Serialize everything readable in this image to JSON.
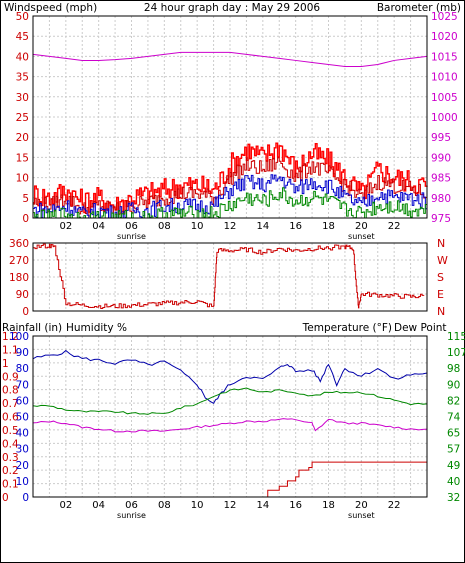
{
  "header": {
    "title": "24 hour graph day : May 29 2006",
    "left_label": "Windspeed (mph)",
    "right_label": "Barometer (mb)"
  },
  "colors": {
    "wind_axis": "#cc0000",
    "baro_axis": "#cc00cc",
    "hum_axis": "#0000cc",
    "temp_axis": "#008800",
    "grid": "#cccccc",
    "wind_gust": "#ff0000",
    "wind_max": "#cc0000",
    "wind_avg": "#0000cc",
    "wind_min": "#008800",
    "barometer": "#cc00cc",
    "direction": "#cc0000",
    "rain": "#cc0000",
    "humidity": "#0000aa",
    "temperature": "#008800",
    "dew_point": "#cc00cc"
  },
  "chart_data": [
    {
      "type": "line",
      "title": "24 hour graph day : May 29 2006",
      "ylabel": "Windspeed (mph)",
      "y2label": "Barometer (mb)",
      "xlim": [
        0,
        24
      ],
      "ylim": [
        0,
        50
      ],
      "y2lim": [
        975,
        1025
      ],
      "x_ticks": [
        "02",
        "04",
        "06",
        "08",
        "10",
        "12",
        "14",
        "16",
        "18",
        "20",
        "22"
      ],
      "x_markers": [
        "sunrise",
        "sunset"
      ],
      "y_ticks": [
        0,
        5,
        10,
        15,
        20,
        25,
        30,
        35,
        40,
        45,
        50
      ],
      "y2_ticks": [
        975,
        980,
        985,
        990,
        995,
        1000,
        1005,
        1010,
        1015,
        1020,
        1025
      ],
      "series": [
        {
          "name": "",
          "role": "barometer",
          "x": [
            0,
            1,
            2,
            3,
            4,
            5,
            6,
            7,
            8,
            9,
            10,
            11,
            12,
            13,
            14,
            15,
            16,
            17,
            18,
            19,
            20,
            21,
            22,
            23,
            24
          ],
          "values": [
            1015.5,
            1015,
            1014.5,
            1014,
            1014,
            1014.2,
            1014.5,
            1015,
            1015.5,
            1016,
            1016,
            1016,
            1016,
            1015.5,
            1015,
            1014.5,
            1014,
            1013.5,
            1013,
            1012.5,
            1012.5,
            1013,
            1014,
            1014.5,
            1015
          ]
        },
        {
          "name": "",
          "role": "gust",
          "x": [
            0,
            1,
            2,
            3,
            4,
            5,
            6,
            7,
            8,
            9,
            10,
            11,
            12,
            13,
            14,
            15,
            16,
            17,
            18,
            19,
            20,
            21,
            22,
            23,
            24
          ],
          "values": [
            6,
            5,
            7,
            4,
            5,
            3,
            5,
            6,
            7,
            8,
            8,
            7,
            13,
            17,
            15,
            18,
            12,
            16,
            14,
            10,
            6,
            12,
            10,
            9,
            8
          ]
        },
        {
          "name": "",
          "role": "max",
          "x": [
            0,
            1,
            2,
            3,
            4,
            5,
            6,
            7,
            8,
            9,
            10,
            11,
            12,
            13,
            14,
            15,
            16,
            17,
            18,
            19,
            20,
            21,
            22,
            23,
            24
          ],
          "values": [
            4,
            3,
            5,
            2,
            3,
            2,
            3,
            4,
            5,
            6,
            6,
            5,
            10,
            13,
            12,
            14,
            10,
            13,
            11,
            8,
            5,
            9,
            8,
            7,
            6
          ]
        },
        {
          "name": "",
          "role": "average",
          "x": [
            0,
            1,
            2,
            3,
            4,
            5,
            6,
            7,
            8,
            9,
            10,
            11,
            12,
            13,
            14,
            15,
            16,
            17,
            18,
            19,
            20,
            21,
            22,
            23,
            24
          ],
          "values": [
            2,
            2,
            3,
            1,
            2,
            1,
            2,
            2,
            3,
            3,
            3,
            3,
            7,
            9,
            8,
            10,
            7,
            9,
            8,
            5,
            3,
            6,
            5,
            5,
            4
          ]
        },
        {
          "name": "",
          "role": "min",
          "x": [
            0,
            1,
            2,
            3,
            4,
            5,
            6,
            7,
            8,
            9,
            10,
            11,
            12,
            13,
            14,
            15,
            16,
            17,
            18,
            19,
            20,
            21,
            22,
            23,
            24
          ],
          "values": [
            0,
            0,
            1,
            0,
            0,
            0,
            0,
            0,
            1,
            1,
            1,
            1,
            3,
            5,
            4,
            6,
            4,
            5,
            4,
            2,
            1,
            3,
            3,
            2,
            2
          ]
        }
      ]
    },
    {
      "type": "line",
      "ylabel_ticks": [
        0,
        90,
        180,
        270,
        360
      ],
      "right_ticks": [
        "N",
        "W",
        "S",
        "E",
        "N"
      ],
      "xlim": [
        0,
        24
      ],
      "ylim": [
        0,
        360
      ],
      "series": [
        {
          "name": "",
          "role": "wind_direction",
          "x": [
            0,
            1,
            1.3,
            2,
            3,
            4,
            5,
            6,
            7,
            8,
            9,
            10,
            11,
            11.2,
            12,
            13,
            14,
            15,
            16,
            17,
            18,
            19,
            19.5,
            19.8,
            20,
            21,
            22,
            23,
            23.8
          ],
          "values": [
            340,
            345,
            340,
            40,
            30,
            25,
            25,
            30,
            35,
            40,
            45,
            50,
            20,
            320,
            320,
            325,
            310,
            330,
            320,
            330,
            335,
            340,
            330,
            20,
            90,
            85,
            80,
            75,
            80
          ]
        }
      ]
    },
    {
      "type": "line",
      "ylabel": "Rainfall (in)",
      "y2label_left": "Humidity %",
      "y2label": "Temperature (°F)",
      "y3label": "Dew Point",
      "xlim": [
        0,
        24
      ],
      "x_ticks": [
        "02",
        "04",
        "06",
        "08",
        "10",
        "12",
        "14",
        "16",
        "18",
        "20",
        "22"
      ],
      "x_markers": [
        "sunrise",
        "sunset"
      ],
      "rain_ticks": [
        "0",
        "0.1",
        "0.2",
        "0.3",
        "0.4",
        "0.5",
        "0.6",
        "0.7",
        "0.8",
        "0.9",
        "1",
        "1.1",
        "1.2"
      ],
      "humidity_ticks": [
        0,
        10,
        20,
        30,
        40,
        50,
        60,
        70,
        80,
        90,
        100
      ],
      "temp_ticks": [
        32,
        40,
        49,
        57,
        65,
        74,
        82,
        90,
        98,
        107,
        115
      ],
      "ylim": [
        0,
        1.2
      ],
      "hum_lim": [
        0,
        100
      ],
      "temp_lim": [
        32,
        115
      ],
      "series": [
        {
          "name": "",
          "role": "rainfall",
          "x": [
            0,
            14,
            14.3,
            15,
            15.5,
            16,
            16.2,
            16.8,
            17,
            24
          ],
          "values": [
            0,
            0,
            0.05,
            0.08,
            0.12,
            0.15,
            0.2,
            0.22,
            0.26,
            0.26
          ]
        },
        {
          "name": "Humidity %",
          "role": "humidity",
          "x": [
            0,
            1,
            2,
            3,
            4,
            5,
            6,
            7,
            8,
            9,
            10,
            10.5,
            11,
            11.5,
            12,
            13,
            14,
            15,
            15.5,
            16,
            17,
            17.5,
            18,
            18.5,
            19,
            20,
            21,
            22,
            23,
            24
          ],
          "values": [
            86,
            88,
            90,
            86,
            85,
            83,
            85,
            82,
            84,
            78,
            70,
            62,
            58,
            65,
            70,
            75,
            73,
            80,
            83,
            78,
            79,
            72,
            83,
            70,
            80,
            75,
            80,
            73,
            76,
            77
          ]
        },
        {
          "name": "Temperature (°F)",
          "role": "temperature",
          "x": [
            0,
            1,
            2,
            3,
            4,
            5,
            6,
            7,
            8,
            9,
            10,
            11,
            12,
            13,
            14,
            15,
            16,
            17,
            18,
            19,
            20,
            21,
            22,
            23,
            24
          ],
          "values": [
            79,
            79,
            77,
            76,
            76,
            76,
            75,
            75,
            75,
            78,
            80,
            84,
            87,
            88,
            86,
            87,
            86,
            84,
            86,
            86,
            86,
            84,
            82,
            80,
            80
          ]
        },
        {
          "name": "Dew Point",
          "role": "dew_point",
          "x": [
            0,
            1,
            2,
            3,
            4,
            5,
            6,
            7,
            8,
            9,
            10,
            11,
            12,
            13,
            14,
            15,
            16,
            17,
            17.2,
            18,
            19,
            20,
            21,
            22,
            23,
            24
          ],
          "values": [
            70,
            71,
            70,
            68,
            67,
            66,
            66,
            66,
            66,
            67,
            68,
            69,
            70,
            71,
            71,
            72,
            72,
            70,
            66,
            72,
            70,
            70,
            69,
            68,
            67,
            67
          ]
        }
      ]
    }
  ]
}
